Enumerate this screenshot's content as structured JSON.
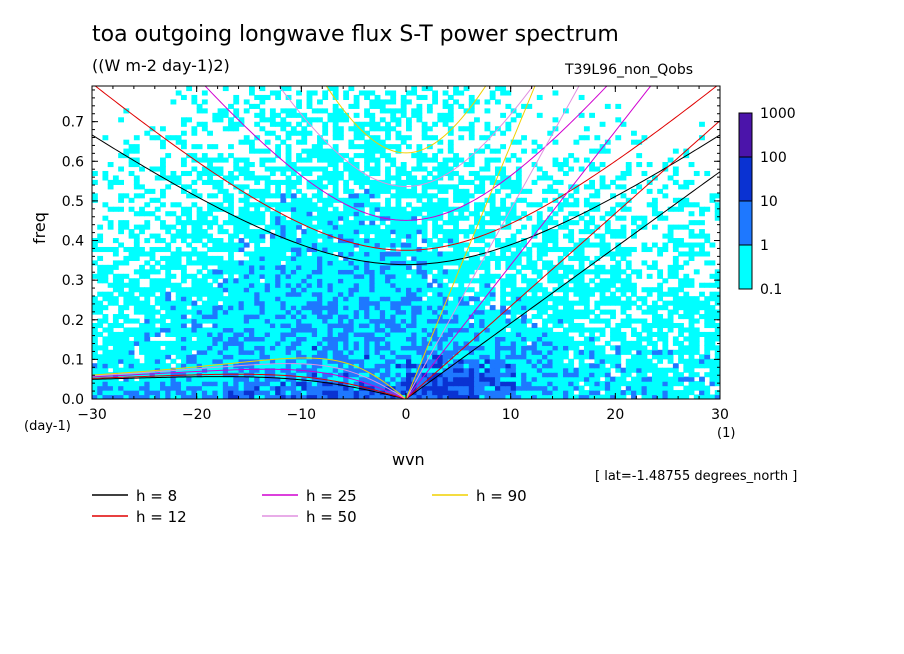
{
  "title": "toa outgoing longwave flux S-T power spectrum",
  "units_label": "((W m-2 day-1)2)",
  "run_id": "T39L96_non_Qobs",
  "lat_note": "[ lat=-1.48755 degrees_north ]",
  "colors": {
    "shade_low": "#00ffff",
    "shade_mid": "#1e78ff",
    "shade_high": "#0a32d2",
    "shade_top": "#4b14aa"
  },
  "chart_data": {
    "type": "heatmap",
    "title": "toa outgoing longwave flux S-T power spectrum",
    "xlabel": "wvn",
    "ylabel": "freq",
    "x_unit": "(1)",
    "y_unit": "(day-1)",
    "xlim": [
      -30,
      30
    ],
    "ylim": [
      0,
      0.79
    ],
    "xticks": [
      "-30",
      "-20",
      "-10",
      "0",
      "10",
      "20",
      "30"
    ],
    "yticks": [
      "0.0",
      "0.1",
      "0.2",
      "0.3",
      "0.4",
      "0.5",
      "0.6",
      "0.7"
    ],
    "colorbar_levels": [
      "0.1",
      "1",
      "10",
      "100",
      "1000"
    ],
    "colorbar_colors": [
      "#00ffff",
      "#1e78ff",
      "#0a32d2",
      "#4b14aa"
    ],
    "dispersion_curves": [
      {
        "label": "h =  8",
        "h": 8,
        "color": "#000000"
      },
      {
        "label": "h = 12",
        "h": 12,
        "color": "#e00000"
      },
      {
        "label": "h = 25",
        "h": 25,
        "color": "#d000d0"
      },
      {
        "label": "h = 50",
        "h": 50,
        "color": "#e090e0"
      },
      {
        "label": "h = 90",
        "h": 90,
        "color": "#f0d000"
      }
    ]
  }
}
